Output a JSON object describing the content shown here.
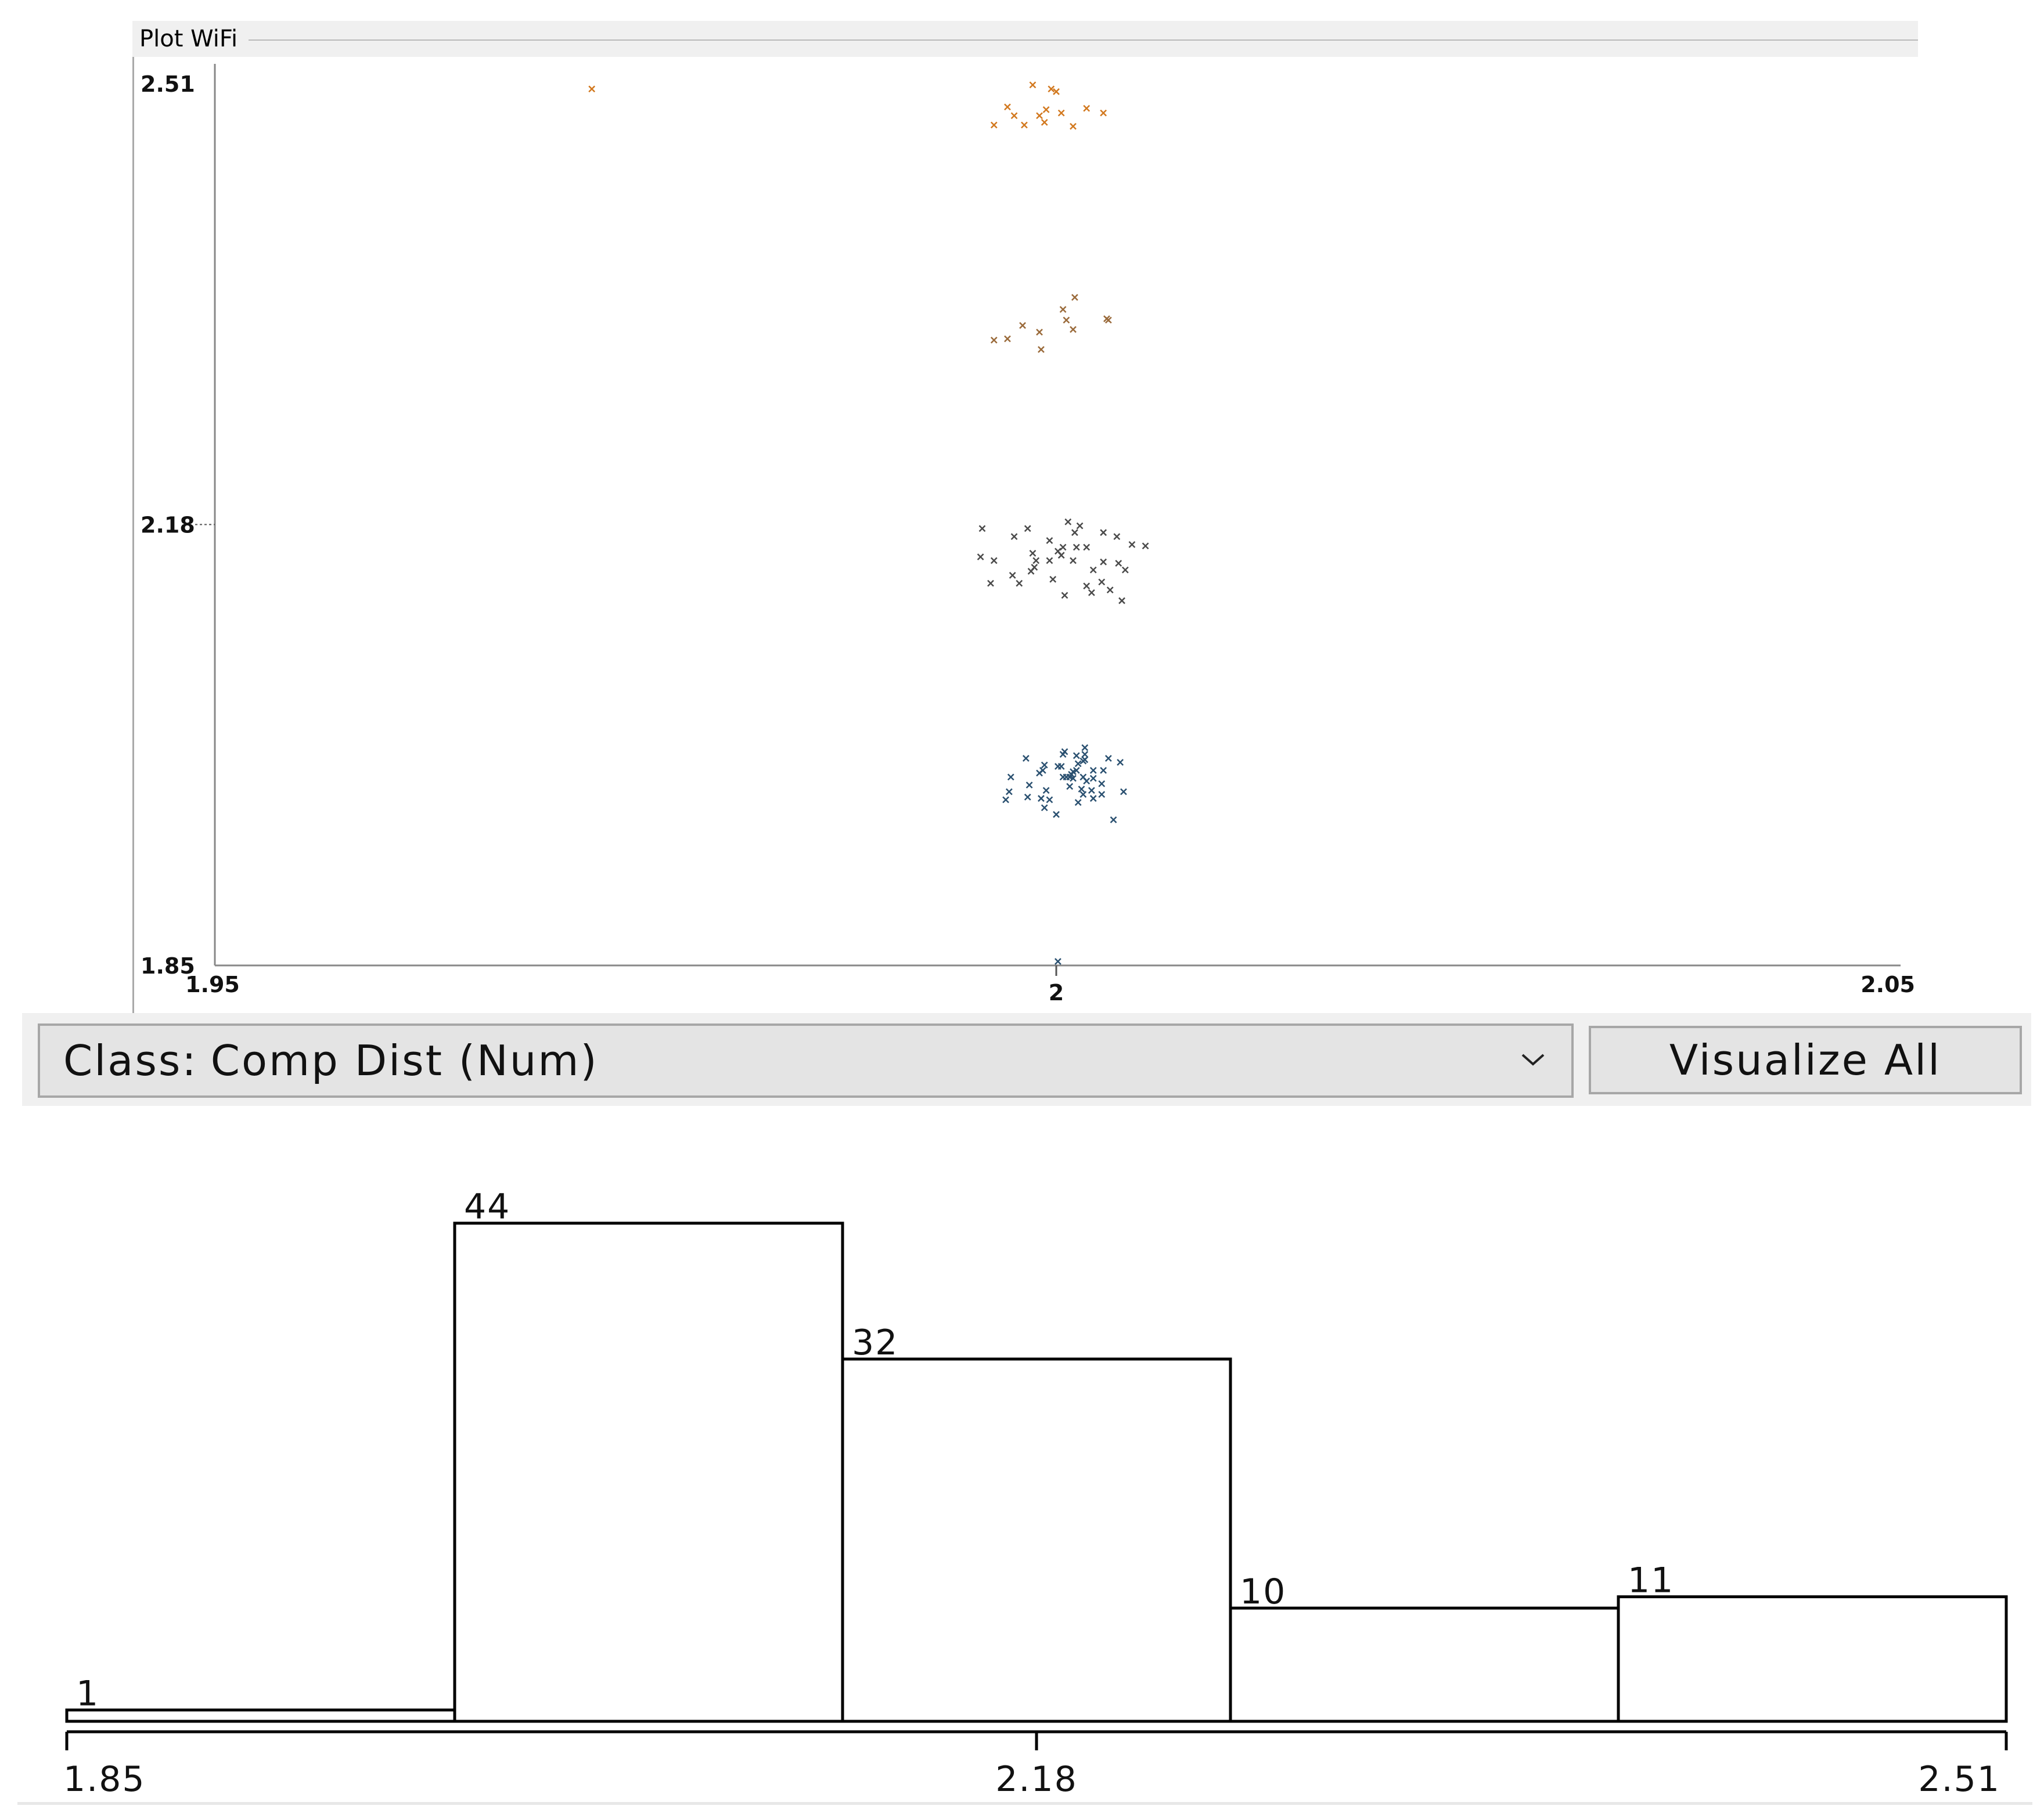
{
  "plot": {
    "title": "Plot WiFi"
  },
  "controls": {
    "class_prefix": "Class:",
    "class_value": "Comp Dist (Num)",
    "visualize_all_label": "Visualize All"
  },
  "chart_data": [
    {
      "type": "scatter",
      "title": "Plot WiFi",
      "xlabel": "",
      "ylabel": "",
      "xlim": [
        1.95,
        2.05
      ],
      "ylim": [
        1.85,
        2.51
      ],
      "x_ticks": [
        {
          "value": 1.95,
          "label": "1.95"
        },
        {
          "value": 2.0,
          "label": "2"
        },
        {
          "value": 2.05,
          "label": "2.05"
        }
      ],
      "y_ticks": [
        {
          "value": 1.85,
          "label": "1.85"
        },
        {
          "value": 2.18,
          "label": "2.18"
        },
        {
          "value": 2.51,
          "label": "2.51"
        }
      ],
      "grid": false,
      "series": [
        {
          "color": "#d2781e",
          "points": [
            [
              1.9724,
              2.506
            ],
            [
              1.9986,
              2.509
            ],
            [
              1.9997,
              2.506
            ],
            [
              2.0,
              2.504
            ],
            [
              1.9971,
              2.4925
            ],
            [
              1.9994,
              2.4905
            ],
            [
              2.0018,
              2.4915
            ],
            [
              2.0003,
              2.488
            ],
            [
              1.999,
              2.486
            ],
            [
              2.0028,
              2.488
            ],
            [
              1.9963,
              2.479
            ],
            [
              1.9981,
              2.479
            ],
            [
              1.9975,
              2.486
            ],
            [
              2.001,
              2.478
            ],
            [
              1.9993,
              2.481
            ]
          ]
        },
        {
          "color": "#9a6a3a",
          "points": [
            [
              1.9971,
              2.319
            ],
            [
              1.998,
              2.329
            ],
            [
              1.999,
              2.324
            ],
            [
              2.001,
              2.326
            ],
            [
              1.9963,
              2.318
            ],
            [
              2.0031,
              2.333
            ],
            [
              2.0004,
              2.341
            ],
            [
              2.0011,
              2.35
            ],
            [
              2.003,
              2.334
            ],
            [
              1.9991,
              2.311
            ],
            [
              2.0006,
              2.333
            ]
          ]
        },
        {
          "color": "#4a4a4a",
          "points": [
            [
              1.9956,
              2.177
            ],
            [
              1.9975,
              2.171
            ],
            [
              2.0007,
              2.182
            ],
            [
              1.9996,
              2.168
            ],
            [
              1.9986,
              2.1585
            ],
            [
              2.0011,
              2.174
            ],
            [
              2.0028,
              2.174
            ],
            [
              1.9955,
              2.1558
            ],
            [
              1.9963,
              2.153
            ],
            [
              1.9988,
              2.153
            ],
            [
              2.0003,
              2.157
            ],
            [
              2.0018,
              2.163
            ],
            [
              2.0004,
              2.163
            ],
            [
              2.0028,
              2.152
            ],
            [
              2.0045,
              2.165
            ],
            [
              1.9985,
              2.145
            ],
            [
              2.0012,
              2.163
            ],
            [
              2.0041,
              2.146
            ],
            [
              1.9987,
              2.148
            ],
            [
              2.0001,
              2.16
            ],
            [
              2.0027,
              2.137
            ],
            [
              1.9974,
              2.142
            ],
            [
              2.0022,
              2.146
            ],
            [
              1.9961,
              2.136
            ],
            [
              1.9998,
              2.139
            ],
            [
              2.0018,
              2.134
            ],
            [
              2.0037,
              2.151
            ],
            [
              2.0032,
              2.131
            ],
            [
              1.9978,
              2.136
            ],
            [
              2.001,
              2.153
            ],
            [
              2.0036,
              2.171
            ],
            [
              1.9996,
              2.153
            ],
            [
              2.0014,
              2.179
            ],
            [
              2.0053,
              2.164
            ],
            [
              2.0021,
              2.129
            ],
            [
              2.0005,
              2.127
            ],
            [
              2.0039,
              2.123
            ],
            [
              1.9983,
              2.177
            ]
          ]
        },
        {
          "color": "#2a5070",
          "points": [
            [
              2.0005,
              2.01
            ],
            [
              2.0004,
              2.008
            ],
            [
              2.0031,
              2.005
            ],
            [
              2.0038,
              2.002
            ],
            [
              1.9993,
              2.0
            ],
            [
              2.0012,
              1.996
            ],
            [
              2.0004,
              1.991
            ],
            [
              1.9992,
              1.996
            ],
            [
              1.9984,
              1.985
            ],
            [
              2.001,
              1.995
            ],
            [
              2.0017,
              2.008
            ],
            [
              2.0022,
              1.996
            ],
            [
              2.001,
              1.99
            ],
            [
              2.0016,
              1.991
            ],
            [
              1.9973,
              1.991
            ],
            [
              2.0008,
              1.991
            ],
            [
              2.0016,
              2.003
            ],
            [
              2.0028,
              1.996
            ],
            [
              2.0017,
              2.013
            ],
            [
              2.0027,
              1.986
            ],
            [
              1.9983,
              1.976
            ],
            [
              2.0006,
              1.991
            ],
            [
              2.0016,
              1.978
            ],
            [
              2.0021,
              1.981
            ],
            [
              2.0027,
              1.978
            ],
            [
              1.9994,
              1.981
            ],
            [
              1.9972,
              1.98
            ],
            [
              1.9996,
              1.974
            ],
            [
              2.0013,
              1.972
            ],
            [
              1.997,
              1.974
            ],
            [
              1.9991,
              1.975
            ],
            [
              1.9993,
              1.968
            ],
            [
              2.0022,
              1.975
            ],
            [
              2.0,
              1.963
            ],
            [
              2.0034,
              1.959
            ],
            [
              2.0022,
              1.99
            ],
            [
              2.0008,
              1.984
            ],
            [
              2.0018,
              1.988
            ],
            [
              2.0015,
              1.982
            ],
            [
              2.004,
              1.98
            ],
            [
              2.0001,
              1.999
            ],
            [
              2.0003,
              1.999
            ],
            [
              2.0013,
              2.001
            ],
            [
              2.0017,
              2.004
            ],
            [
              1.9982,
              2.005
            ],
            [
              2.0009,
              1.993
            ],
            [
              2.0012,
              2.007
            ],
            [
              1.999,
              1.994
            ],
            [
              2.0001,
              1.853
            ]
          ]
        }
      ]
    },
    {
      "type": "bar",
      "title": "",
      "xlabel": "",
      "ylabel": "",
      "bin_edges": [
        1.85,
        1.982,
        2.114,
        2.246,
        2.378,
        2.51
      ],
      "values": [
        1,
        44,
        32,
        10,
        11
      ],
      "value_labels": [
        "1",
        "44",
        "32",
        "10",
        "11"
      ],
      "ylim": [
        0,
        44
      ],
      "x_ticks": [
        {
          "value": 1.85,
          "label": "1.85"
        },
        {
          "value": 2.18,
          "label": "2.18"
        },
        {
          "value": 2.51,
          "label": "2.51"
        }
      ]
    }
  ]
}
